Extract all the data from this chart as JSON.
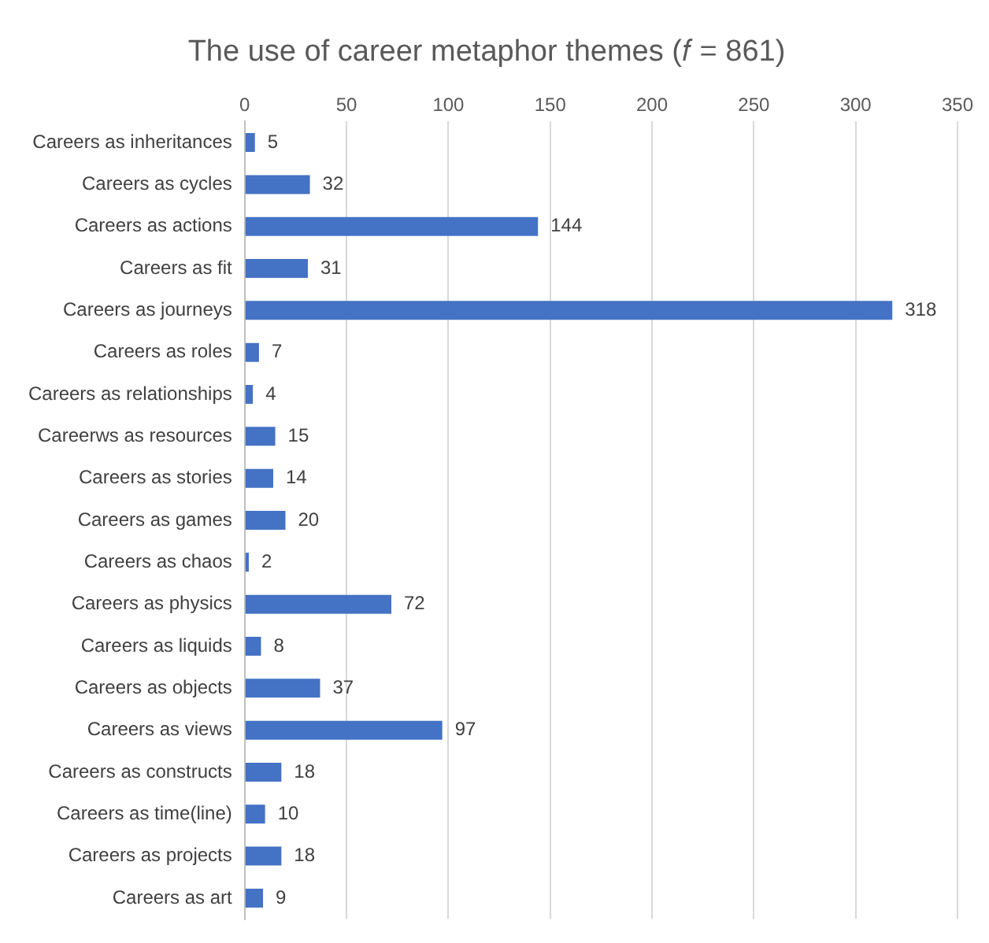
{
  "chart_data": {
    "type": "bar",
    "orientation": "horizontal",
    "title": "The use of career metaphor themes (𝑓 = 861)",
    "categories": [
      "Careers as inheritances",
      "Careers as cycles",
      "Careers as actions",
      "Careers as fit",
      "Careers as journeys",
      "Careers as roles",
      "Careers as relationships",
      "Careerws as resources",
      "Careers as stories",
      "Careers as games",
      "Careers as chaos",
      "Careers as physics",
      "Careers as liquids",
      "Careers as objects",
      "Careers as views",
      "Careers as constructs",
      "Careers as time(line)",
      "Careers as projects",
      "Careers as art"
    ],
    "values": [
      5,
      32,
      144,
      31,
      318,
      7,
      4,
      15,
      14,
      20,
      2,
      72,
      8,
      37,
      97,
      18,
      10,
      18,
      9
    ],
    "color": "#4472c4",
    "xlim": [
      0,
      350
    ],
    "xticks": [
      0,
      50,
      100,
      150,
      200,
      250,
      300,
      350
    ],
    "grid": "x",
    "data_labels": true
  }
}
